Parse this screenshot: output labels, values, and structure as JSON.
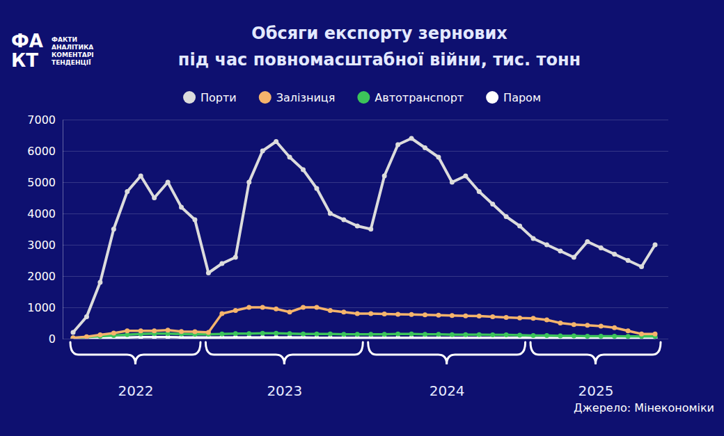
{
  "chart_data": {
    "type": "line",
    "title": "Обсяги експорту зернових",
    "subtitle": "під час повномасштабної війни, тис. тонн",
    "logo_mark": [
      "ФА",
      "КТ"
    ],
    "logo_text": [
      "ФАКТИ",
      "АНАЛІТИКА",
      "КОМЕНТАРІ",
      "ТЕНДЕНЦІЇ"
    ],
    "source": "Джерело: Мінекономіки",
    "categories": [
      "2022",
      null,
      null,
      null,
      null,
      null,
      null,
      null,
      null,
      null,
      "2023",
      null,
      null,
      null,
      null,
      null,
      null,
      null,
      null,
      null,
      null,
      null,
      "2024",
      null,
      null,
      null,
      null,
      null,
      null,
      null,
      null,
      null,
      null,
      null,
      "2025",
      null,
      null,
      null,
      null,
      null,
      null,
      null,
      null,
      null
    ],
    "series": [
      {
        "name": "Порти",
        "color": "#dcdcdc",
        "line_style": "solid",
        "values": [
          200,
          700,
          1800,
          3500,
          4700,
          5200,
          4500,
          5000,
          4200,
          3800,
          2100,
          2400,
          2600,
          5000,
          6000,
          6300,
          5800,
          5400,
          4800,
          4000,
          3800,
          3600,
          3500,
          5200,
          6200,
          6400,
          6100,
          5800,
          5000,
          5200,
          4700,
          4300,
          3900,
          3600,
          3200,
          3000,
          2800,
          2600,
          3100,
          2900,
          2700,
          2500,
          2300,
          3000
        ]
      },
      {
        "name": "Залізниця",
        "color": "#f5b46c",
        "line_style": "solid",
        "values": [
          30,
          60,
          120,
          180,
          250,
          250,
          250,
          270,
          230,
          220,
          200,
          800,
          900,
          1000,
          1000,
          950,
          850,
          1000,
          1000,
          900,
          850,
          800,
          800,
          790,
          780,
          770,
          760,
          750,
          740,
          730,
          720,
          700,
          680,
          660,
          650,
          600,
          500,
          450,
          430,
          400,
          350,
          250,
          150,
          150
        ]
      },
      {
        "name": "Автотранспорт",
        "color": "#3cc45a",
        "line_style": "solid",
        "values": [
          20,
          50,
          80,
          100,
          130,
          150,
          160,
          160,
          150,
          140,
          140,
          150,
          160,
          160,
          170,
          170,
          160,
          150,
          150,
          150,
          140,
          140,
          140,
          140,
          150,
          150,
          140,
          140,
          130,
          130,
          130,
          120,
          120,
          110,
          100,
          100,
          90,
          90,
          80,
          80,
          80,
          70,
          70,
          70
        ]
      },
      {
        "name": "Паром",
        "color": "#ffffff",
        "line_style": "solid",
        "values": [
          10,
          20,
          30,
          40,
          40,
          50,
          50,
          50,
          40,
          40,
          40,
          40,
          40,
          40,
          40,
          40,
          40,
          40,
          30,
          30,
          30,
          30,
          30,
          30,
          30,
          30,
          30,
          30,
          30,
          30,
          30,
          30,
          30,
          30,
          20,
          20,
          20,
          20,
          20,
          20,
          20,
          20,
          20,
          20
        ]
      }
    ],
    "ylim": [
      0,
      7000
    ],
    "yticks": [
      0,
      1000,
      2000,
      3000,
      4000,
      5000,
      6000,
      7000
    ],
    "grid": true,
    "legend": "top",
    "marker": "circle"
  }
}
